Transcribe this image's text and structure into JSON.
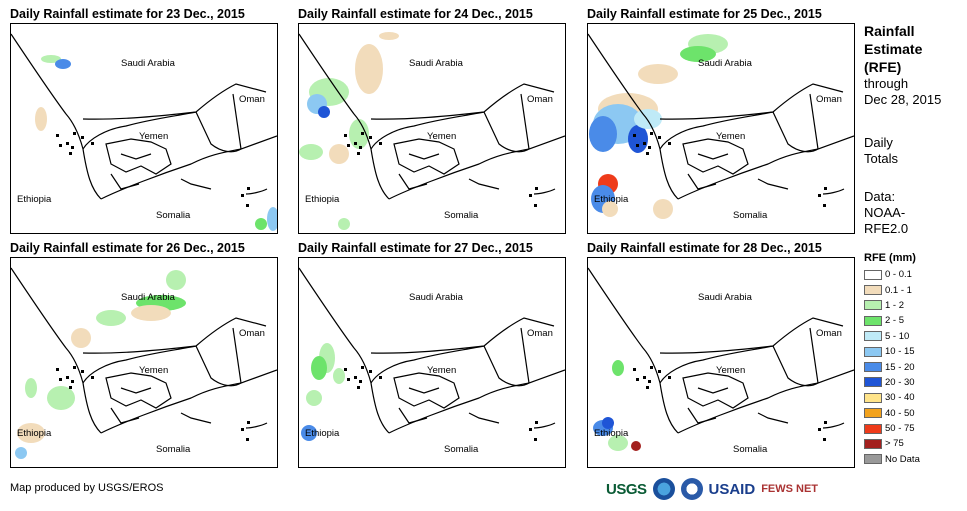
{
  "panels": [
    {
      "title": "Daily Rainfall estimate for 23 Dec., 2015"
    },
    {
      "title": "Daily Rainfall estimate for 24 Dec., 2015"
    },
    {
      "title": "Daily Rainfall estimate for 25 Dec., 2015"
    },
    {
      "title": "Daily Rainfall estimate for 26 Dec., 2015"
    },
    {
      "title": "Daily Rainfall estimate for 27 Dec., 2015"
    },
    {
      "title": "Daily Rainfall estimate for 28 Dec., 2015"
    }
  ],
  "map_labels": {
    "saudi": "Saudi Arabia",
    "oman": "Oman",
    "yemen": "Yemen",
    "ethiopia": "Ethiopia",
    "somalia": "Somalia"
  },
  "side": {
    "title_line1": "Rainfall",
    "title_line2": "Estimate",
    "title_line3": "(RFE)",
    "through": "through",
    "date": "Dec 28, 2015",
    "daily1": "Daily",
    "daily2": "Totals",
    "data_label": "Data:",
    "data_src1": "NOAA-",
    "data_src2": "RFE2.0"
  },
  "legend": {
    "title": "RFE (mm)",
    "items": [
      {
        "label": "0 - 0.1",
        "color": "#ffffff"
      },
      {
        "label": "0.1 - 1",
        "color": "#f2dcbb"
      },
      {
        "label": "1 - 2",
        "color": "#b7f0b0"
      },
      {
        "label": "2 - 5",
        "color": "#6de36b"
      },
      {
        "label": "5 - 10",
        "color": "#bfeaf7"
      },
      {
        "label": "10 - 15",
        "color": "#8cc8f2"
      },
      {
        "label": "15 - 20",
        "color": "#4a8be8"
      },
      {
        "label": "20 - 30",
        "color": "#1f55d6"
      },
      {
        "label": "30 - 40",
        "color": "#ffe48a"
      },
      {
        "label": "40 - 50",
        "color": "#f2a21d"
      },
      {
        "label": "50 - 75",
        "color": "#ee3b1a"
      },
      {
        "label": "> 75",
        "color": "#a3201e"
      },
      {
        "label": "No Data",
        "color": "#999999"
      }
    ]
  },
  "credit": "Map produced by USGS/EROS",
  "logos": {
    "usgs": "USGS",
    "usaid": "USAID",
    "fews": "FEWS NET"
  }
}
